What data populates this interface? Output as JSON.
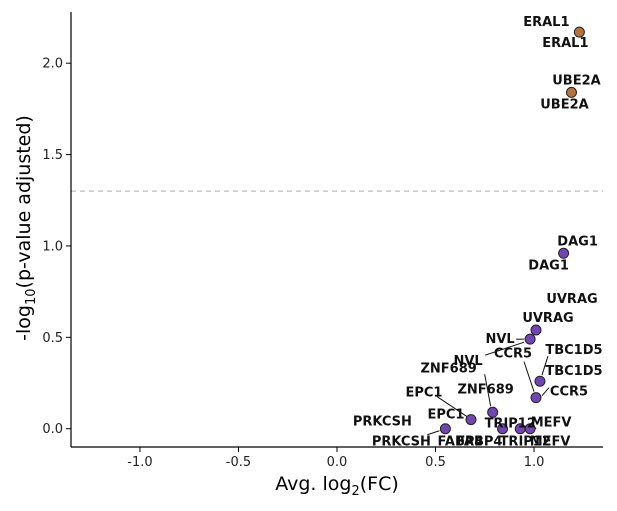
{
  "chart_data": {
    "type": "scatter",
    "xlabel_main": "Avg. log",
    "xlabel_sub": "2",
    "xlabel_tail": "(FC)",
    "ylabel_main": "-log",
    "ylabel_sub": "10",
    "ylabel_tail": "(p-value adjusted)",
    "xlim": [
      -1.35,
      1.35
    ],
    "ylim": [
      -0.1,
      2.28
    ],
    "xticks": [
      -1.0,
      -0.5,
      0.0,
      0.5,
      1.0
    ],
    "xtick_labels": [
      "-1.0",
      "-0.5",
      "0.0",
      "0.5",
      "1.0"
    ],
    "yticks": [
      0.0,
      0.5,
      1.0,
      1.5,
      2.0
    ],
    "ytick_labels": [
      "0.0",
      "0.5",
      "1.0",
      "1.5",
      "2.0"
    ],
    "threshold_y": 1.3,
    "colors": {
      "significant": "#b5733f",
      "nonsignificant": "#7344b4",
      "threshold": "#bdbdbd"
    },
    "points": [
      {
        "gene": "ERAL1",
        "x": 1.23,
        "y": 2.17,
        "significant": true
      },
      {
        "gene": "UBE2A",
        "x": 1.19,
        "y": 1.84,
        "significant": true
      },
      {
        "gene": "DAG1",
        "x": 1.15,
        "y": 0.96,
        "significant": false
      },
      {
        "gene": "UVRAG",
        "x": 1.01,
        "y": 0.54,
        "significant": false
      },
      {
        "gene": "NVL",
        "x": 0.98,
        "y": 0.49,
        "significant": false
      },
      {
        "gene": "TBC1D5",
        "x": 1.03,
        "y": 0.26,
        "significant": false
      },
      {
        "gene": "CCR5",
        "x": 1.01,
        "y": 0.17,
        "significant": false
      },
      {
        "gene": "ZNF689",
        "x": 0.79,
        "y": 0.09,
        "significant": false
      },
      {
        "gene": "EPC1",
        "x": 0.68,
        "y": 0.05,
        "significant": false
      },
      {
        "gene": "TRIP12",
        "x": 0.93,
        "y": 0.0,
        "significant": false
      },
      {
        "gene": "MEFV",
        "x": 0.98,
        "y": 0.0,
        "significant": false
      },
      {
        "gene": "FABP4",
        "x": 0.84,
        "y": 0.0,
        "significant": false
      },
      {
        "gene": "PRKCSH",
        "x": 0.55,
        "y": 0.0,
        "significant": false
      }
    ]
  }
}
